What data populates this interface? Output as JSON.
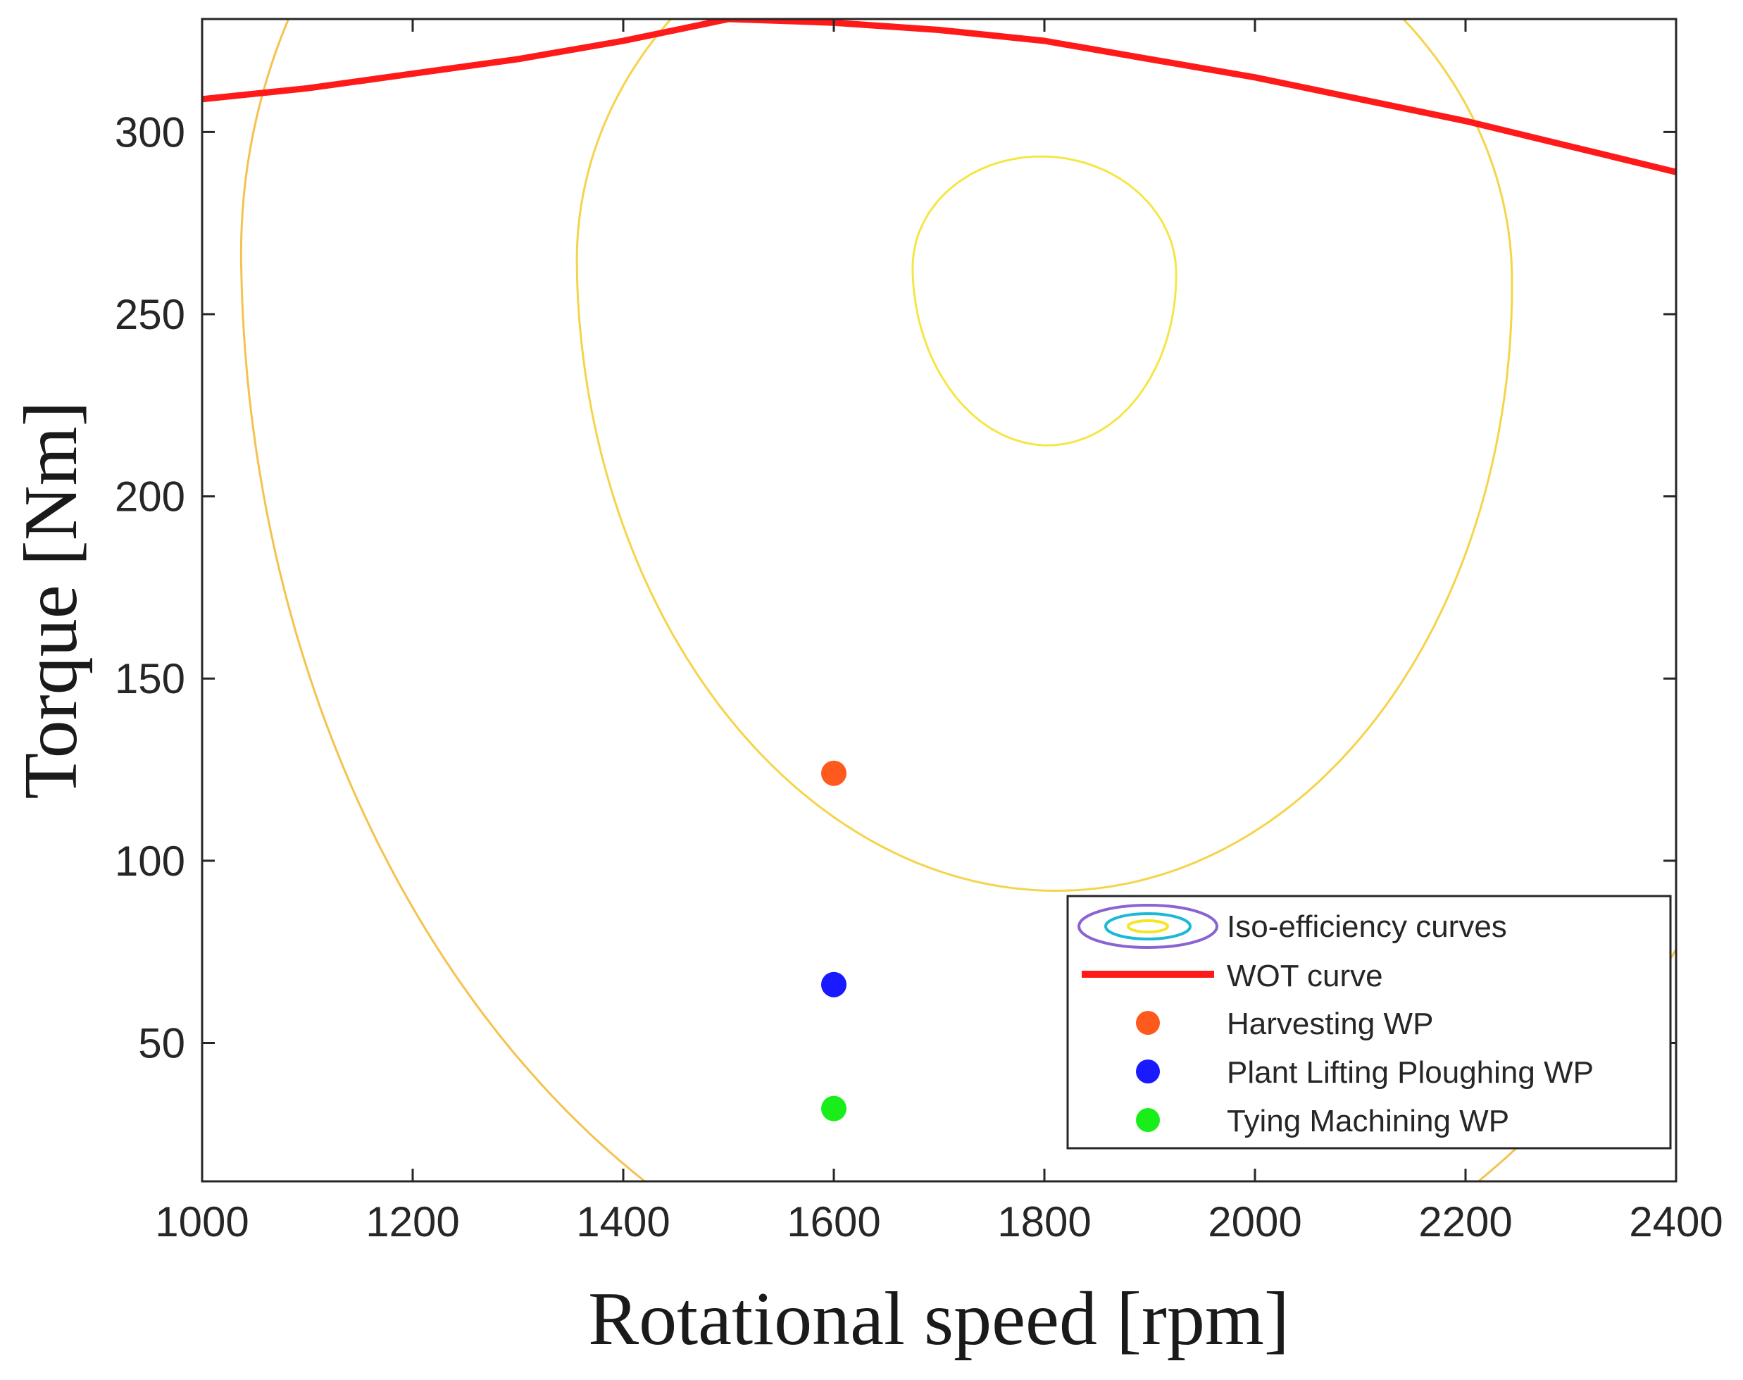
{
  "chart_data": {
    "type": "contour",
    "title": "",
    "xlabel": "Rotational speed [rpm]",
    "ylabel": "Torque [Nm]",
    "xlim": [
      1000,
      2400
    ],
    "ylim": [
      12,
      331
    ],
    "xticks": [
      1000,
      1200,
      1400,
      1600,
      1800,
      2000,
      2200,
      2400
    ],
    "yticks": [
      50,
      100,
      150,
      200,
      250,
      300
    ],
    "grid": false,
    "colors": {
      "wot": "#ff1a1a",
      "harvesting": "#ff5a1e",
      "plant_lifting": "#1a1aff",
      "tying": "#1aee1a",
      "axis": "#262626",
      "legend_border": "#262626"
    },
    "contour": {
      "name": "Iso-efficiency curves",
      "center": {
        "x": 1800,
        "y": 262
      },
      "colormap": "parula-like (blue low, yellow high)",
      "levels": 26
    },
    "wot_curve": {
      "name": "WOT curve",
      "x": [
        1000,
        1100,
        1200,
        1300,
        1400,
        1500,
        1600,
        1700,
        1800,
        1900,
        2000,
        2100,
        2200,
        2300,
        2400
      ],
      "y": [
        309,
        312,
        316,
        320,
        325,
        331,
        330,
        328,
        325,
        320,
        315,
        309,
        303,
        296,
        289
      ]
    },
    "points": [
      {
        "name": "Harvesting WP",
        "x": 1600,
        "y": 124,
        "color": "#ff5a1e"
      },
      {
        "name": "Plant Lifting Ploughing WP",
        "x": 1600,
        "y": 66,
        "color": "#1a1aff"
      },
      {
        "name": "Tying Machining WP",
        "x": 1600,
        "y": 32,
        "color": "#1aee1a"
      }
    ],
    "legend": {
      "position": "bottom-right",
      "entries": [
        "Iso-efficiency curves",
        "WOT curve",
        "Harvesting WP",
        "Plant Lifting Ploughing WP",
        "Tying Machining WP"
      ]
    }
  }
}
